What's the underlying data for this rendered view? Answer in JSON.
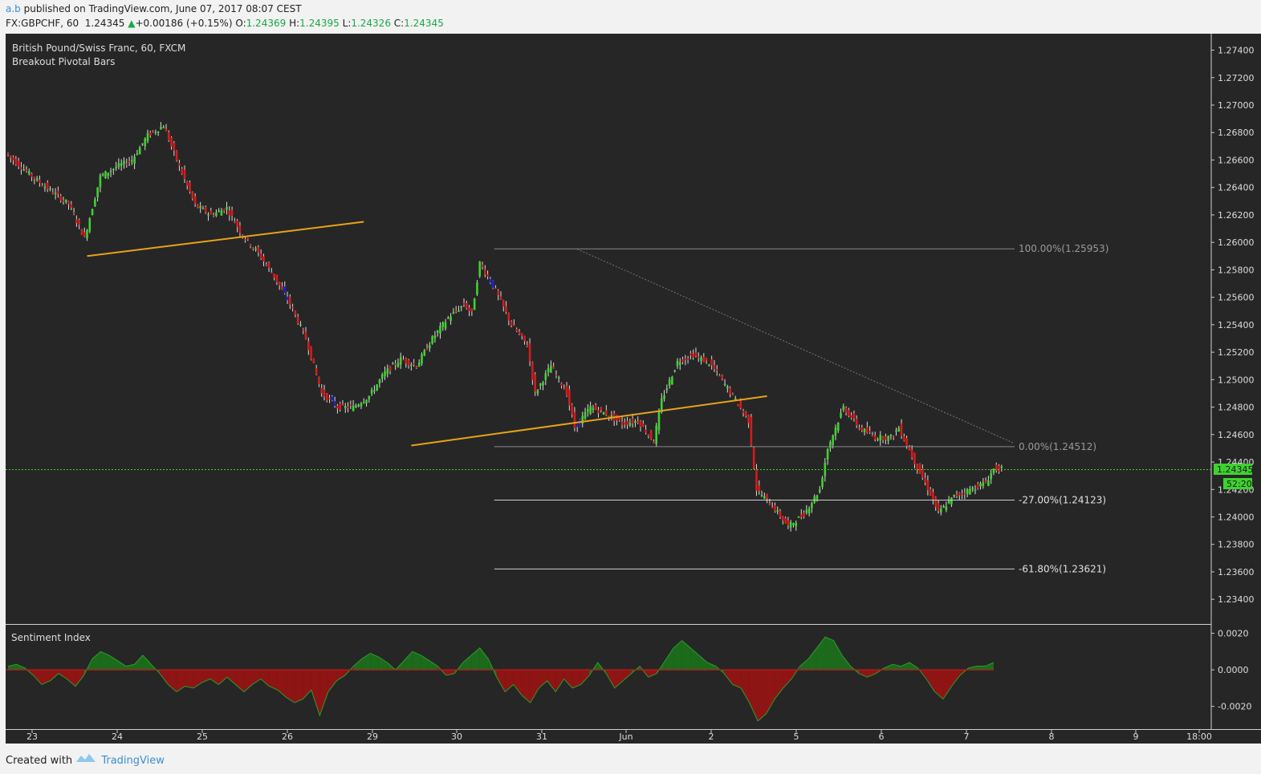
{
  "header": {
    "user": "a.b",
    "published": "published on TradingView.com, June 07, 2017 08:07 CEST",
    "symbol": "FX:GBPCHF, 60",
    "last": "1.24345",
    "change": "+0.00186 (+0.15%)",
    "o_label": "O:",
    "o": "1.24369",
    "h_label": "H:",
    "h": "1.24395",
    "l_label": "L:",
    "l": "1.24326",
    "c_label": "C:",
    "c": "1.24345"
  },
  "legend": {
    "title": "British Pound/Swiss Franc, 60, FXCM",
    "indicator": "Breakout Pivotal Bars"
  },
  "sub_title": "Sentiment Index",
  "price_tag": "1.24345",
  "countdown_tag": "52:20",
  "footer": {
    "created_with": "Created with",
    "brand": "TradingView"
  },
  "colors": {
    "up": "#3fd22f",
    "down": "#d41c1c",
    "pivot": "#2222cc",
    "trend": "#e8a317",
    "last": "#3fd22f",
    "bg": "#262626"
  },
  "chart_data": [
    {
      "type": "candlestick",
      "title": "British Pound/Swiss Franc, 60, FXCM",
      "ylim": [
        1.2322,
        1.2752
      ],
      "y_ticks": [
        "1.27400",
        "1.27200",
        "1.27000",
        "1.26800",
        "1.26600",
        "1.26400",
        "1.26200",
        "1.26000",
        "1.25800",
        "1.25600",
        "1.25400",
        "1.25200",
        "1.25000",
        "1.24800",
        "1.24600",
        "1.24400",
        "1.24200",
        "1.24000",
        "1.23800",
        "1.23600",
        "1.23400"
      ],
      "x_ticks": [
        "23",
        "24",
        "25",
        "26",
        "29",
        "30",
        "31",
        "Jun",
        "2",
        "5",
        "6",
        "7",
        "8",
        "9",
        "18:00"
      ],
      "last_price": 1.24345,
      "ohlc": {
        "open": 1.24369,
        "high": 1.24395,
        "low": 1.24326,
        "close": 1.24345
      },
      "price_path": [
        [
          0,
          1.2665
        ],
        [
          4,
          1.2645
        ],
        [
          8,
          1.2628
        ],
        [
          10,
          1.2603
        ],
        [
          12,
          1.2648
        ],
        [
          14,
          1.2655
        ],
        [
          16,
          1.266
        ],
        [
          18,
          1.2678
        ],
        [
          20,
          1.2685
        ],
        [
          22,
          1.2655
        ],
        [
          24,
          1.2627
        ],
        [
          26,
          1.262
        ],
        [
          28,
          1.2625
        ],
        [
          30,
          1.2605
        ],
        [
          32,
          1.2592
        ],
        [
          34,
          1.2575
        ],
        [
          36,
          1.2555
        ],
        [
          38,
          1.253
        ],
        [
          40,
          1.249
        ],
        [
          42,
          1.248
        ],
        [
          44,
          1.248
        ],
        [
          46,
          1.2488
        ],
        [
          48,
          1.2505
        ],
        [
          50,
          1.2515
        ],
        [
          52,
          1.251
        ],
        [
          54,
          1.253
        ],
        [
          56,
          1.2545
        ],
        [
          58,
          1.2555
        ],
        [
          59,
          1.2548
        ],
        [
          60,
          1.2585
        ],
        [
          62,
          1.2565
        ],
        [
          64,
          1.254
        ],
        [
          66,
          1.2525
        ],
        [
          67,
          1.249
        ],
        [
          69,
          1.251
        ],
        [
          71,
          1.249
        ],
        [
          72,
          1.2465
        ],
        [
          74,
          1.248
        ],
        [
          76,
          1.2475
        ],
        [
          78,
          1.2468
        ],
        [
          80,
          1.247
        ],
        [
          82,
          1.2455
        ],
        [
          83,
          1.2485
        ],
        [
          85,
          1.2513
        ],
        [
          87,
          1.2518
        ],
        [
          89,
          1.2512
        ],
        [
          90,
          1.2505
        ],
        [
          92,
          1.2488
        ],
        [
          94,
          1.247
        ],
        [
          95,
          1.242
        ],
        [
          97,
          1.2408
        ],
        [
          99,
          1.2393
        ],
        [
          101,
          1.2402
        ],
        [
          103,
          1.242
        ],
        [
          104,
          1.245
        ],
        [
          106,
          1.248
        ],
        [
          108,
          1.2465
        ],
        [
          110,
          1.2458
        ],
        [
          112,
          1.2458
        ],
        [
          113,
          1.2465
        ],
        [
          115,
          1.244
        ],
        [
          117,
          1.2417
        ],
        [
          118,
          1.2403
        ],
        [
          120,
          1.2415
        ],
        [
          122,
          1.242
        ],
        [
          124,
          1.2425
        ],
        [
          125,
          1.2435
        ]
      ],
      "fibonacci": [
        {
          "label": "100.00%(1.25953)",
          "level": 1.25953
        },
        {
          "label": "0.00%(1.24512)",
          "level": 1.24512
        },
        {
          "label": "-27.00%(1.24123)",
          "level": 1.24123
        },
        {
          "label": "-61.80%(1.23621)",
          "level": 1.23621
        }
      ],
      "trendlines": [
        {
          "from": [
            10,
            1.259
          ],
          "to": [
            45,
            1.2615
          ]
        },
        {
          "from": [
            51,
            1.2452
          ],
          "to": [
            96,
            1.2488
          ]
        },
        {
          "from": [
            72,
            1.2595
          ],
          "to": [
            150,
            1.2454
          ]
        }
      ]
    },
    {
      "type": "area",
      "title": "Sentiment Index",
      "ylim": [
        -0.0032,
        0.0022
      ],
      "y_ticks": [
        "0.0020",
        "0.0000",
        "-0.0020"
      ],
      "values": [
        0.0002,
        0.0003,
        0.0001,
        -0.0003,
        -0.0008,
        -0.0006,
        -0.0002,
        -0.0005,
        -0.0009,
        -0.0003,
        0.0006,
        0.001,
        0.0008,
        0.0005,
        0.0002,
        0.0003,
        0.0008,
        0.0003,
        -0.0002,
        -0.0008,
        -0.0012,
        -0.0009,
        -0.001,
        -0.0007,
        -0.0005,
        -0.0008,
        -0.0004,
        -0.0008,
        -0.0012,
        -0.0008,
        -0.0005,
        -0.0009,
        -0.0011,
        -0.0015,
        -0.0018,
        -0.0016,
        -0.0011,
        -0.0025,
        -0.0012,
        -0.0006,
        -0.0003,
        0.0002,
        0.0006,
        0.0009,
        0.0007,
        0.0004,
        0.0,
        0.0005,
        0.001,
        0.0008,
        0.0005,
        0.0002,
        -0.0003,
        -0.0002,
        0.0004,
        0.0008,
        0.0012,
        0.0006,
        -0.0004,
        -0.0012,
        -0.0008,
        -0.0014,
        -0.0018,
        -0.001,
        -0.0006,
        -0.0012,
        -0.0005,
        -0.001,
        -0.0008,
        -0.0003,
        0.0004,
        -0.0002,
        -0.001,
        -0.0006,
        -0.0002,
        0.0002,
        -0.0004,
        -0.0002,
        0.0005,
        0.0012,
        0.0016,
        0.0012,
        0.0008,
        0.0004,
        0.0002,
        -0.0002,
        -0.0008,
        -0.001,
        -0.0018,
        -0.0028,
        -0.0024,
        -0.0016,
        -0.001,
        -0.0005,
        0.0002,
        0.0006,
        0.0012,
        0.0018,
        0.0016,
        0.0008,
        0.0002,
        -0.0002,
        -0.0004,
        -0.0002,
        0.0001,
        0.0003,
        0.0002,
        0.0004,
        0.0001,
        -0.0005,
        -0.0012,
        -0.0016,
        -0.0009,
        -0.0003,
        0.0001,
        0.0002,
        0.0002,
        0.0004
      ]
    }
  ]
}
